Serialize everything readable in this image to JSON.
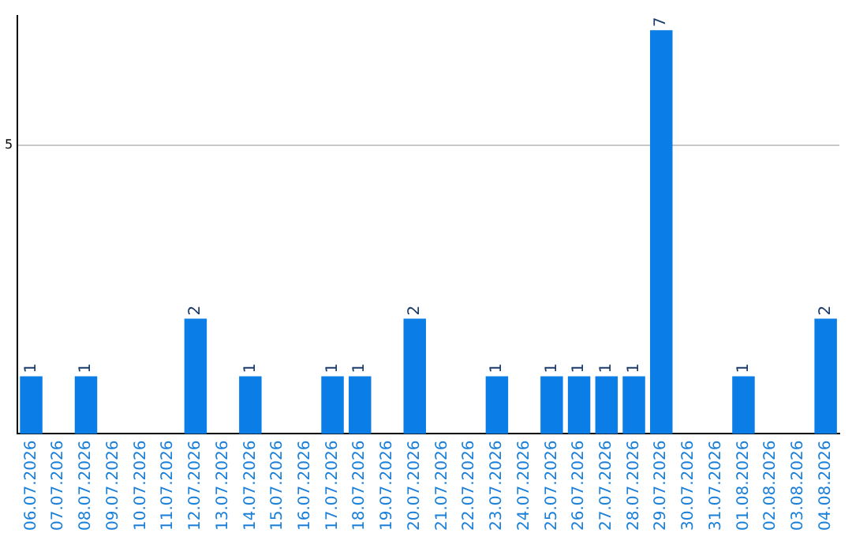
{
  "chart_data": {
    "type": "bar",
    "categories": [
      "06.07.2026",
      "07.07.2026",
      "08.07.2026",
      "09.07.2026",
      "10.07.2026",
      "11.07.2026",
      "12.07.2026",
      "13.07.2026",
      "14.07.2026",
      "15.07.2026",
      "16.07.2026",
      "17.07.2026",
      "18.07.2026",
      "19.07.2026",
      "20.07.2026",
      "21.07.2026",
      "22.07.2026",
      "23.07.2026",
      "24.07.2026",
      "25.07.2026",
      "26.07.2026",
      "27.07.2026",
      "28.07.2026",
      "29.07.2026",
      "30.07.2026",
      "31.07.2026",
      "01.08.2026",
      "02.08.2026",
      "03.08.2026",
      "04.08.2026"
    ],
    "values": [
      1,
      0,
      1,
      0,
      0,
      0,
      2,
      0,
      1,
      0,
      0,
      1,
      1,
      0,
      2,
      0,
      0,
      1,
      0,
      1,
      1,
      1,
      1,
      7,
      0,
      0,
      1,
      0,
      0,
      2
    ],
    "value_labels": [
      "1",
      null,
      "1",
      null,
      null,
      null,
      "2",
      null,
      "1",
      null,
      null,
      "1",
      "1",
      null,
      "2",
      null,
      null,
      "1",
      null,
      "1",
      "1",
      "1",
      "1",
      "7",
      null,
      null,
      "1",
      null,
      null,
      "2"
    ],
    "color": "#0a7de6",
    "ylim": [
      0,
      7.25
    ],
    "yticks": [
      5
    ],
    "grid": "y",
    "legend": false
  }
}
